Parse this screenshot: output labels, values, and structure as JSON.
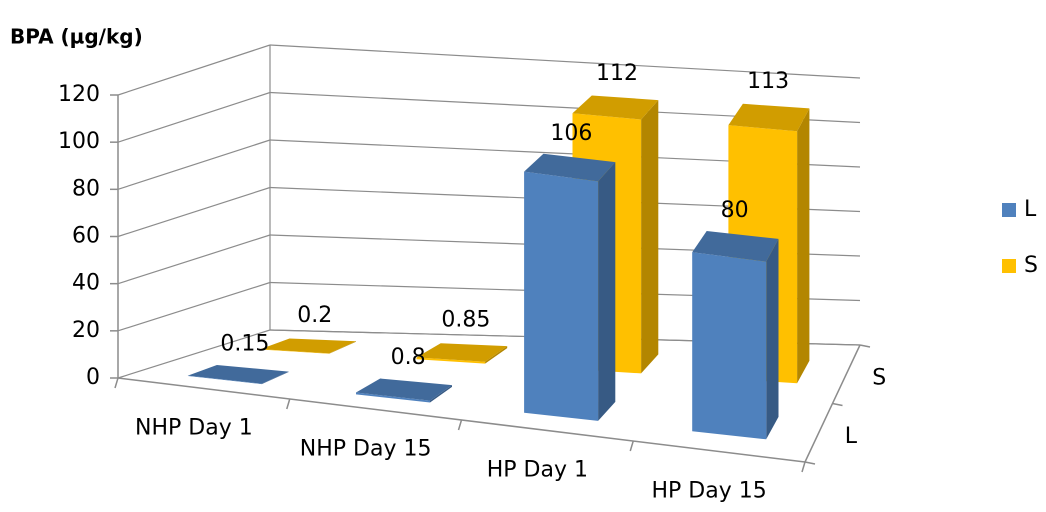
{
  "chart_data": {
    "type": "bar",
    "title": "BPA (µg/kg)",
    "categories": [
      "NHP Day 1",
      "NHP Day 15",
      "HP Day 1",
      "HP Day 15"
    ],
    "series": [
      {
        "name": "L",
        "color": "#4f81bd",
        "values": [
          0.15,
          0.8,
          106,
          80
        ]
      },
      {
        "name": "S",
        "color": "#ffc000",
        "values": [
          0.2,
          0.85,
          112,
          113
        ]
      }
    ],
    "ylim": [
      0,
      120
    ],
    "yticks": [
      0,
      20,
      40,
      60,
      80,
      100,
      120
    ],
    "grid": true,
    "legend": "right"
  }
}
